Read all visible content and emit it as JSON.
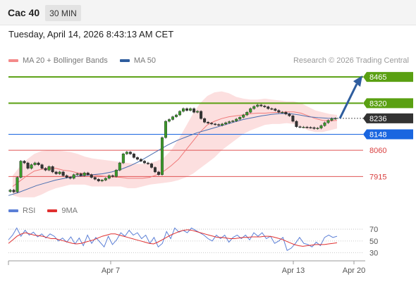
{
  "header": {
    "symbol": "Cac 40",
    "interval": "30 MIN"
  },
  "timestamp": "Tuesday, April 14, 2026 8:43:13 AM CET",
  "legend": {
    "items": [
      {
        "label": "MA 20 + Bollinger Bands",
        "color": "#f48a8a"
      },
      {
        "label": "MA 50",
        "color": "#2f5d9e"
      }
    ],
    "credit": "Research © 2026 Trading Central"
  },
  "rsi_legend": {
    "items": [
      {
        "label": "RSI",
        "color": "#5b7fd6"
      },
      {
        "label": "9MA",
        "color": "#e03030"
      }
    ]
  },
  "chart_data": [
    {
      "type": "line",
      "ylim": [
        7780,
        8520
      ],
      "levels": [
        {
          "label": "8465",
          "value": 8465,
          "color": "#5aa012",
          "style": "resistance"
        },
        {
          "label": "8320",
          "value": 8320,
          "color": "#5aa012",
          "style": "resistance"
        },
        {
          "label": "8236",
          "value": 8236,
          "color": "#333333",
          "style": "current"
        },
        {
          "label": "8148",
          "value": 8148,
          "color": "#1a66e0",
          "style": "pivot"
        },
        {
          "label": "8060",
          "value": 8060,
          "color": "#e05555",
          "style": "support"
        },
        {
          "label": "7915",
          "value": 7915,
          "color": "#e05555",
          "style": "support"
        }
      ],
      "price": [
        7840,
        7830,
        7910,
        8000,
        7990,
        7960,
        7980,
        7990,
        7980,
        7960,
        7950,
        7970,
        7940,
        7930,
        7940,
        7920,
        7910,
        7905,
        7925,
        7930,
        7920,
        7935,
        7925,
        7910,
        7900,
        7890,
        7895,
        7905,
        7920,
        7915,
        7950,
        7990,
        8040,
        8050,
        8040,
        8020,
        8010,
        8000,
        7990,
        7985,
        7965,
        7940,
        7925,
        8130,
        8220,
        8230,
        8245,
        8255,
        8275,
        8290,
        8280,
        8290,
        8270,
        8275,
        8235,
        8215,
        8210,
        8205,
        8202,
        8198,
        8205,
        8212,
        8218,
        8222,
        8232,
        8242,
        8255,
        8270,
        8290,
        8302,
        8310,
        8305,
        8300,
        8290,
        8288,
        8280,
        8270,
        8270,
        8260,
        8250,
        8220,
        8190,
        8188,
        8188,
        8186,
        8185,
        8180,
        8182,
        8196,
        8212,
        8225,
        8235,
        8236
      ],
      "bb_upper": [
        7920,
        7970,
        8010,
        8040,
        8055,
        8060,
        8060,
        8055,
        8050,
        8040,
        8025,
        8015,
        8010,
        8005,
        8000,
        7995,
        7990,
        7985,
        7985,
        7990,
        8000,
        8020,
        8060,
        8120,
        8190,
        8260,
        8320,
        8360,
        8380,
        8385,
        8375,
        8355,
        8345,
        8340,
        8340,
        8345,
        8340,
        8335,
        8330,
        8330,
        8320,
        8300,
        8280,
        8270,
        8260,
        8255
      ],
      "bb_lower": [
        7810,
        7800,
        7800,
        7800,
        7815,
        7835,
        7850,
        7860,
        7870,
        7870,
        7870,
        7860,
        7860,
        7860,
        7860,
        7860,
        7850,
        7850,
        7860,
        7870,
        7875,
        7880,
        7885,
        7895,
        7910,
        7930,
        7960,
        7990,
        8020,
        8060,
        8090,
        8120,
        8150,
        8170,
        8185,
        8200,
        8205,
        8205,
        8210,
        8205,
        8190,
        8170,
        8160,
        8160,
        8170,
        8180
      ],
      "ma20": [
        7860,
        7890,
        7920,
        7945,
        7955,
        7960,
        7960,
        7950,
        7945,
        7935,
        7930,
        7925,
        7920,
        7915,
        7912,
        7910,
        7905,
        7905,
        7905,
        7910,
        7925,
        7945,
        7975,
        8010,
        8060,
        8110,
        8160,
        8200,
        8220,
        8235,
        8245,
        8250,
        8255,
        8262,
        8265,
        8265,
        8268,
        8270,
        8272,
        8272,
        8265,
        8250,
        8235,
        8225,
        8222,
        8225
      ],
      "ma50": [
        7810,
        7825,
        7845,
        7865,
        7880,
        7895,
        7905,
        7915,
        7920,
        7925,
        7930,
        7940,
        7955,
        7975,
        8000,
        8030,
        8060,
        8090,
        8115,
        8135,
        8155,
        8170,
        8185,
        8200,
        8215,
        8230,
        8240,
        8250,
        8258,
        8263,
        8262,
        8255,
        8245,
        8240,
        8237,
        8236
      ],
      "x_ticks": [
        "Apr 7",
        "Apr 13",
        "Apr 20"
      ]
    },
    {
      "type": "line",
      "ylim": [
        20,
        82
      ],
      "levels": [
        70,
        50,
        30
      ],
      "rsi": [
        52,
        60,
        72,
        58,
        68,
        60,
        65,
        57,
        62,
        55,
        62,
        58,
        50,
        55,
        48,
        57,
        45,
        55,
        42,
        60,
        46,
        56,
        48,
        40,
        58,
        44,
        52,
        64,
        58,
        68,
        60,
        64,
        54,
        60,
        46,
        56,
        40,
        46,
        66,
        54,
        72,
        65,
        68,
        64,
        72,
        68,
        64,
        60,
        54,
        50,
        60,
        54,
        60,
        48,
        56,
        60,
        54,
        60,
        52,
        64,
        58,
        64,
        54,
        58,
        46,
        50,
        56,
        34,
        38,
        46,
        56,
        46,
        44,
        40,
        48,
        42,
        56,
        60,
        56,
        58
      ],
      "ma9": [
        46,
        52,
        58,
        62,
        64,
        62,
        60,
        59,
        58,
        56,
        54,
        54,
        52,
        50,
        48,
        46,
        45,
        46,
        48,
        50,
        52,
        55,
        58,
        60,
        62,
        62,
        60,
        58,
        56,
        54,
        52,
        50,
        48,
        46,
        45,
        48,
        52,
        56,
        60,
        63,
        66,
        68,
        69,
        68,
        66,
        64,
        62,
        60,
        58,
        56,
        56,
        55,
        54,
        54,
        55,
        56,
        56,
        57,
        57,
        57,
        58,
        58,
        57,
        55,
        53,
        50,
        47,
        44,
        42,
        41,
        42,
        43,
        44,
        44,
        44,
        45,
        46,
        47
      ]
    }
  ]
}
